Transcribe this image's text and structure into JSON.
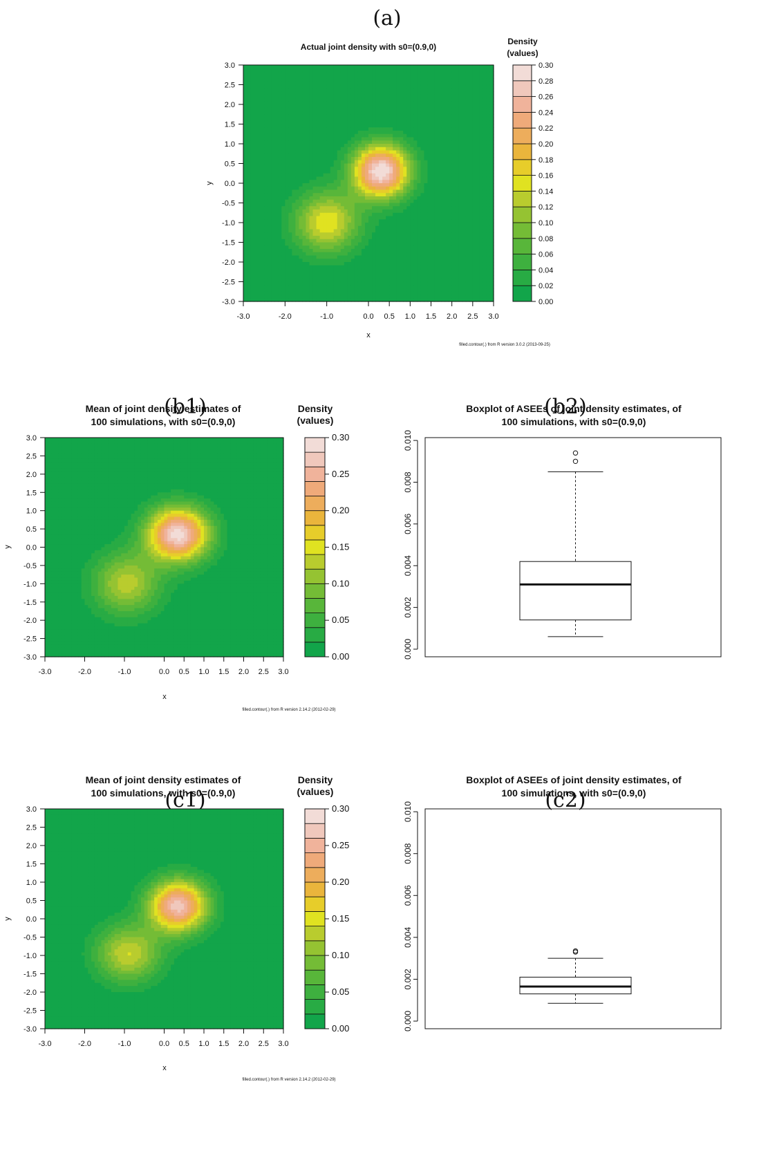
{
  "panel_labels": {
    "a": "(a)",
    "b1": "(b1)",
    "b2": "(b2)",
    "c1": "(c1)",
    "c2": "(c2)"
  },
  "chart_data": [
    {
      "id": "a",
      "type": "heatmap",
      "title": "Actual joint density with s0=(0.9,0)",
      "xlabel": "x",
      "ylabel": "y",
      "xlim": [
        -3,
        3
      ],
      "ylim": [
        -3,
        3
      ],
      "xticks": [
        "-3.0",
        "-2.0",
        "-1.0",
        "0.0",
        "0.5",
        "1.0",
        "1.5",
        "2.0",
        "2.5",
        "3.0"
      ],
      "xtick_values": [
        -3,
        -2,
        -1,
        0,
        0.5,
        1,
        1.5,
        2,
        2.5,
        3
      ],
      "yticks": [
        "3.0",
        "2.5",
        "2.0",
        "1.5",
        "1.0",
        "0.5",
        "0.0",
        "-0.5",
        "-1.0",
        "-1.5",
        "-2.0",
        "-2.5",
        "-3.0"
      ],
      "ytick_values": [
        3,
        2.5,
        2,
        1.5,
        1,
        0.5,
        0,
        -0.5,
        -1,
        -1.5,
        -2,
        -2.5,
        -3
      ],
      "legend_title": [
        "Density",
        "(values)"
      ],
      "legend_ticks": [
        "0.30",
        "0.28",
        "0.26",
        "0.24",
        "0.22",
        "0.20",
        "0.18",
        "0.16",
        "0.14",
        "0.12",
        "0.10",
        "0.08",
        "0.06",
        "0.04",
        "0.02",
        "0.00"
      ],
      "levels": [
        0,
        0.02,
        0.04,
        0.06,
        0.08,
        0.1,
        0.12,
        0.14,
        0.16,
        0.18,
        0.2,
        0.22,
        0.24,
        0.26,
        0.28,
        0.3
      ],
      "modes": [
        {
          "x": 0.3,
          "y": 0.3,
          "sigma_x": 0.48,
          "sigma_y": 0.48,
          "peak": 0.3
        },
        {
          "x": -1.0,
          "y": -1.0,
          "sigma_x": 0.55,
          "sigma_y": 0.55,
          "peak": 0.16
        }
      ],
      "footer": "filled.contour(.) from R version 3.0.2 (2013-09-25)"
    },
    {
      "id": "b1",
      "type": "heatmap",
      "title": [
        "Mean of joint density estimates of",
        "100 simulations, with s0=(0.9,0)"
      ],
      "xlabel": "x",
      "ylabel": "y",
      "xlim": [
        -3,
        3
      ],
      "ylim": [
        -3,
        3
      ],
      "xticks": [
        "-3.0",
        "-2.0",
        "-1.0",
        "0.0",
        "0.5",
        "1.0",
        "1.5",
        "2.0",
        "2.5",
        "3.0"
      ],
      "xtick_values": [
        -3,
        -2,
        -1,
        0,
        0.5,
        1,
        1.5,
        2,
        2.5,
        3
      ],
      "yticks": [
        "3.0",
        "2.5",
        "2.0",
        "1.5",
        "1.0",
        "0.5",
        "0.0",
        "-0.5",
        "-1.0",
        "-1.5",
        "-2.0",
        "-2.5",
        "-3.0"
      ],
      "ytick_values": [
        3,
        2.5,
        2,
        1.5,
        1,
        0.5,
        0,
        -0.5,
        -1,
        -1.5,
        -2,
        -2.5,
        -3
      ],
      "legend_title": [
        "Density",
        "(values)"
      ],
      "legend_ticks": [
        "0.30",
        "0.25",
        "0.20",
        "0.15",
        "0.10",
        "0.05",
        "0.00"
      ],
      "levels": [
        0,
        0.02,
        0.04,
        0.06,
        0.08,
        0.1,
        0.12,
        0.14,
        0.16,
        0.18,
        0.2,
        0.22,
        0.24,
        0.26,
        0.28,
        0.3
      ],
      "modes": [
        {
          "x": 0.35,
          "y": 0.35,
          "sigma_x": 0.55,
          "sigma_y": 0.52,
          "peak": 0.29
        },
        {
          "x": -0.95,
          "y": -1.0,
          "sigma_x": 0.6,
          "sigma_y": 0.6,
          "peak": 0.13
        }
      ],
      "footer": "filled.contour(.) from R version 2.14.2 (2012-02-29)"
    },
    {
      "id": "b2",
      "type": "boxplot",
      "title": [
        "Boxplot of ASEEs of joint density estimates, of",
        "100 simulations, with s0=(0.9,0)"
      ],
      "ylim": [
        0,
        0.0105
      ],
      "yticks": [
        "0.000",
        "0.002",
        "0.004",
        "0.006",
        "0.008",
        "0.010"
      ],
      "ytick_values": [
        0,
        0.002,
        0.004,
        0.006,
        0.008,
        0.01
      ],
      "whisker_low": 0.0006,
      "q1": 0.0014,
      "median": 0.0031,
      "q3": 0.0042,
      "whisker_high": 0.0085,
      "outliers": [
        0.009,
        0.0094
      ]
    },
    {
      "id": "c1",
      "type": "heatmap",
      "title": [
        "Mean of joint density estimates of",
        "100 simulations, with s0=(0.9,0)"
      ],
      "xlabel": "x",
      "ylabel": "y",
      "xlim": [
        -3,
        3
      ],
      "ylim": [
        -3,
        3
      ],
      "xticks": [
        "-3.0",
        "-2.0",
        "-1.0",
        "0.0",
        "0.5",
        "1.0",
        "1.5",
        "2.0",
        "2.5",
        "3.0"
      ],
      "xtick_values": [
        -3,
        -2,
        -1,
        0,
        0.5,
        1,
        1.5,
        2,
        2.5,
        3
      ],
      "yticks": [
        "3.0",
        "2.5",
        "2.0",
        "1.5",
        "1.0",
        "0.5",
        "0.0",
        "-0.5",
        "-1.0",
        "-1.5",
        "-2.0",
        "-2.5",
        "-3.0"
      ],
      "ytick_values": [
        3,
        2.5,
        2,
        1.5,
        1,
        0.5,
        0,
        -0.5,
        -1,
        -1.5,
        -2,
        -2.5,
        -3
      ],
      "legend_title": [
        "Density",
        "(values)"
      ],
      "legend_ticks": [
        "0.30",
        "0.25",
        "0.20",
        "0.15",
        "0.10",
        "0.05",
        "0.00"
      ],
      "levels": [
        0,
        0.02,
        0.04,
        0.06,
        0.08,
        0.1,
        0.12,
        0.14,
        0.16,
        0.18,
        0.2,
        0.22,
        0.24,
        0.26,
        0.28,
        0.3
      ],
      "modes": [
        {
          "x": 0.35,
          "y": 0.35,
          "sigma_x": 0.52,
          "sigma_y": 0.5,
          "peak": 0.27
        },
        {
          "x": -0.9,
          "y": -0.95,
          "sigma_x": 0.58,
          "sigma_y": 0.55,
          "peak": 0.14
        }
      ],
      "footer": "filled.contour(.) from R version 2.14.2 (2012-02-29)"
    },
    {
      "id": "c2",
      "type": "boxplot",
      "title": [
        "Boxplot of ASEEs of joint density estimates, of",
        "100 simulations, with s0=(0.9,0)"
      ],
      "ylim": [
        0,
        0.0105
      ],
      "yticks": [
        "0.000",
        "0.002",
        "0.004",
        "0.006",
        "0.008",
        "0.010"
      ],
      "ytick_values": [
        0,
        0.002,
        0.004,
        0.006,
        0.008,
        0.01
      ],
      "whisker_low": 0.00085,
      "q1": 0.0013,
      "median": 0.00165,
      "q3": 0.0021,
      "whisker_high": 0.003,
      "outliers": [
        0.0033,
        0.00335
      ]
    }
  ],
  "colors": {
    "palette": [
      "#12a54a",
      "#28ab44",
      "#3eb03f",
      "#58b63a",
      "#74bc36",
      "#95c332",
      "#b9cc2e",
      "#e0e221",
      "#e7cd2a",
      "#eab53c",
      "#edad5c",
      "#efaa7a",
      "#f0b39b",
      "#f0c8bc",
      "#f2dcd7",
      "#f2f2f2"
    ],
    "axis": "#111111"
  }
}
